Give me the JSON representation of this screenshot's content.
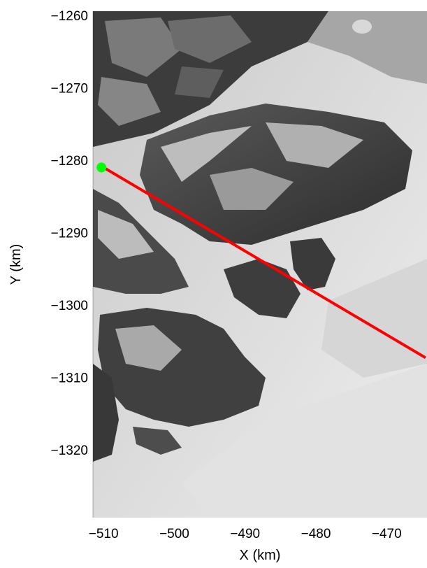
{
  "figure": {
    "xlabel": "X (km)",
    "ylabel": "Y (km)"
  },
  "chart_data": {
    "type": "map",
    "xlabel": "X (km)",
    "ylabel": "Y (km)",
    "xlim": [
      -511.5,
      -464.3
    ],
    "ylim": [
      -1329.4,
      -1259.4
    ],
    "xticks": [
      -510,
      -500,
      -490,
      -480,
      -470
    ],
    "yticks": [
      -1260,
      -1270,
      -1280,
      -1290,
      -1300,
      -1310,
      -1320
    ],
    "xtick_labels": [
      "−510",
      "−500",
      "−490",
      "−480",
      "−470"
    ],
    "ytick_labels": [
      "−1260",
      "−1270",
      "−1280",
      "−1290",
      "−1300",
      "−1310",
      "−1320"
    ],
    "background": "grayscale satellite image of fjord coastline with sea ice and glacier",
    "series": [
      {
        "kind": "line",
        "color": "#ff0000",
        "x": [
          -510.0,
          -464.5
        ],
        "y": [
          -1281.0,
          -1307.3
        ]
      },
      {
        "kind": "marker",
        "color": "#00ff00",
        "x": [
          -510.3
        ],
        "y": [
          -1281.0
        ]
      }
    ]
  }
}
